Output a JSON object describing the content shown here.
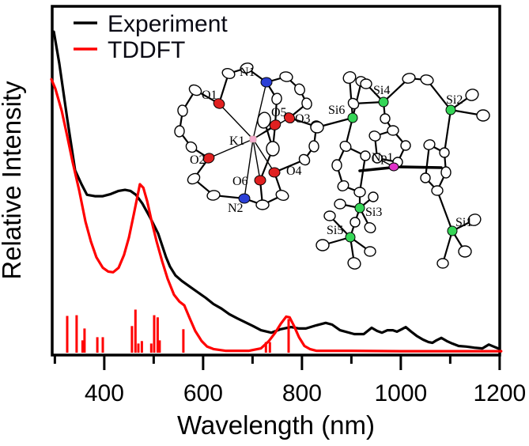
{
  "figure": {
    "x_axis_label": "Wavelength (nm)",
    "y_axis_label": "Relative Intensity",
    "legend": [
      {
        "label": "Experiment",
        "color_key": "experiment"
      },
      {
        "label": "TDDFT",
        "color_key": "tddft"
      }
    ]
  },
  "colors": {
    "experiment": "#000000",
    "tddft": "#ff0000",
    "oxygen": "#e02020",
    "nitrogen": "#2b3fd6",
    "potassium": "#f5aacd",
    "silicon": "#35d657",
    "neptunium": "#e031c8"
  },
  "chart_data": {
    "type": "line",
    "title": "",
    "xlabel": "Wavelength (nm)",
    "ylabel": "Relative Intensity",
    "xlim": [
      293,
      1205
    ],
    "ylim": [
      0,
      1
    ],
    "x_major_ticks": [
      400,
      600,
      800,
      1000,
      1200
    ],
    "x_minor_ticks": [
      300,
      500,
      700,
      900,
      1100
    ],
    "y_ticks": [],
    "grid": false,
    "legend_position": "top-left",
    "series": [
      {
        "name": "Experiment",
        "style": "line",
        "color_key": "experiment",
        "points": [
          [
            298,
            0.925
          ],
          [
            309,
            0.834
          ],
          [
            325,
            0.676
          ],
          [
            341,
            0.528
          ],
          [
            354,
            0.488
          ],
          [
            365,
            0.458
          ],
          [
            381,
            0.454
          ],
          [
            397,
            0.454
          ],
          [
            413,
            0.46
          ],
          [
            429,
            0.469
          ],
          [
            442,
            0.472
          ],
          [
            453,
            0.469
          ],
          [
            464,
            0.458
          ],
          [
            477,
            0.433
          ],
          [
            493,
            0.392
          ],
          [
            509,
            0.347
          ],
          [
            525,
            0.279
          ],
          [
            533,
            0.252
          ],
          [
            544,
            0.227
          ],
          [
            557,
            0.211
          ],
          [
            573,
            0.195
          ],
          [
            589,
            0.179
          ],
          [
            605,
            0.163
          ],
          [
            621,
            0.145
          ],
          [
            637,
            0.132
          ],
          [
            653,
            0.116
          ],
          [
            669,
            0.104
          ],
          [
            685,
            0.093
          ],
          [
            701,
            0.082
          ],
          [
            717,
            0.07
          ],
          [
            738,
            0.063
          ],
          [
            757,
            0.073
          ],
          [
            778,
            0.079
          ],
          [
            794,
            0.075
          ],
          [
            808,
            0.075
          ],
          [
            829,
            0.084
          ],
          [
            848,
            0.091
          ],
          [
            861,
            0.086
          ],
          [
            877,
            0.07
          ],
          [
            906,
            0.059
          ],
          [
            925,
            0.059
          ],
          [
            941,
            0.077
          ],
          [
            952,
            0.068
          ],
          [
            962,
            0.063
          ],
          [
            973,
            0.07
          ],
          [
            984,
            0.07
          ],
          [
            992,
            0.066
          ],
          [
            1002,
            0.073
          ],
          [
            1010,
            0.079
          ],
          [
            1021,
            0.066
          ],
          [
            1032,
            0.054
          ],
          [
            1045,
            0.043
          ],
          [
            1056,
            0.036
          ],
          [
            1064,
            0.034
          ],
          [
            1072,
            0.041
          ],
          [
            1082,
            0.048
          ],
          [
            1093,
            0.039
          ],
          [
            1104,
            0.032
          ],
          [
            1117,
            0.025
          ],
          [
            1133,
            0.023
          ],
          [
            1149,
            0.02
          ],
          [
            1165,
            0.018
          ],
          [
            1178,
            0.029
          ],
          [
            1188,
            0.023
          ],
          [
            1197,
            0.018
          ]
        ]
      },
      {
        "name": "TDDFT",
        "style": "line",
        "color_key": "tddft",
        "points": [
          [
            293,
            0.789
          ],
          [
            301,
            0.762
          ],
          [
            314,
            0.698
          ],
          [
            325,
            0.626
          ],
          [
            336,
            0.551
          ],
          [
            349,
            0.472
          ],
          [
            362,
            0.381
          ],
          [
            373,
            0.324
          ],
          [
            384,
            0.279
          ],
          [
            397,
            0.249
          ],
          [
            408,
            0.238
          ],
          [
            418,
            0.236
          ],
          [
            429,
            0.249
          ],
          [
            440,
            0.286
          ],
          [
            450,
            0.336
          ],
          [
            460,
            0.404
          ],
          [
            468,
            0.46
          ],
          [
            472,
            0.488
          ],
          [
            479,
            0.478
          ],
          [
            487,
            0.438
          ],
          [
            496,
            0.381
          ],
          [
            506,
            0.324
          ],
          [
            517,
            0.268
          ],
          [
            528,
            0.218
          ],
          [
            541,
            0.172
          ],
          [
            552,
            0.152
          ],
          [
            562,
            0.141
          ],
          [
            573,
            0.104
          ],
          [
            584,
            0.068
          ],
          [
            597,
            0.039
          ],
          [
            608,
            0.023
          ],
          [
            621,
            0.016
          ],
          [
            645,
            0.011
          ],
          [
            669,
            0.011
          ],
          [
            693,
            0.011
          ],
          [
            717,
            0.018
          ],
          [
            733,
            0.039
          ],
          [
            746,
            0.063
          ],
          [
            757,
            0.088
          ],
          [
            768,
            0.109
          ],
          [
            775,
            0.107
          ],
          [
            784,
            0.082
          ],
          [
            794,
            0.05
          ],
          [
            805,
            0.025
          ],
          [
            816,
            0.016
          ],
          [
            829,
            0.011
          ],
          [
            900,
            0.011
          ],
          [
            1000,
            0.01
          ],
          [
            1100,
            0.01
          ],
          [
            1203,
            0.01
          ]
        ]
      },
      {
        "name": "TDDFT oscillator strengths",
        "style": "sticks",
        "color_key": "tddft",
        "points": [
          [
            325,
            0.111
          ],
          [
            344,
            0.113
          ],
          [
            356,
            0.041
          ],
          [
            360,
            0.075
          ],
          [
            386,
            0.05
          ],
          [
            397,
            0.05
          ],
          [
            456,
            0.082
          ],
          [
            463,
            0.129
          ],
          [
            469,
            0.032
          ],
          [
            476,
            0.039
          ],
          [
            495,
            0.032
          ],
          [
            501,
            0.113
          ],
          [
            508,
            0.107
          ],
          [
            512,
            0.041
          ],
          [
            560,
            0.073
          ],
          [
            727,
            0.036
          ],
          [
            735,
            0.036
          ],
          [
            773,
            0.102
          ]
        ]
      }
    ]
  },
  "molecule_insets": {
    "potassium_cryptand": {
      "description": "ORTEP drawing of K1 cryptand cation",
      "labels": {
        "n1": "N1",
        "o1": "O1",
        "o5": "O5",
        "o3": "O3",
        "k1": "K1",
        "o2": "O2",
        "o6": "O6",
        "o4": "O4",
        "n2": "N2"
      }
    },
    "neptunium_complex": {
      "description": "ORTEP drawing of Np tris(silyl-cyclopentadienyl) anion",
      "labels": {
        "si4": "Si4",
        "si2": "Si2",
        "si6": "Si6",
        "np1": "Np1",
        "si3": "Si3",
        "si5": "Si5",
        "si1": "Si1"
      }
    }
  }
}
